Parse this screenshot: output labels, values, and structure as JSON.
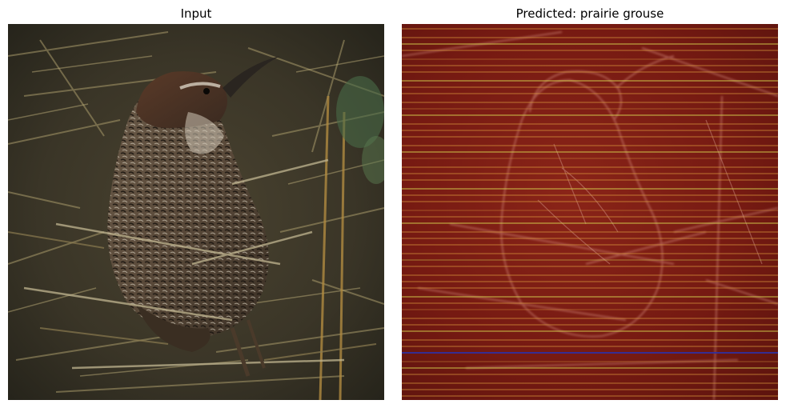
{
  "figure": {
    "panels": [
      {
        "title": "Input"
      },
      {
        "title": "Predicted: prairie grouse"
      }
    ]
  },
  "colors": {
    "background": "#ffffff",
    "title_text": "#000000",
    "heatmap_base": "#7a1a12",
    "heatmap_band_orange": "#e0a040",
    "heatmap_band_yellow": "#d8d850",
    "heatmap_band_blue": "#3030a0"
  }
}
